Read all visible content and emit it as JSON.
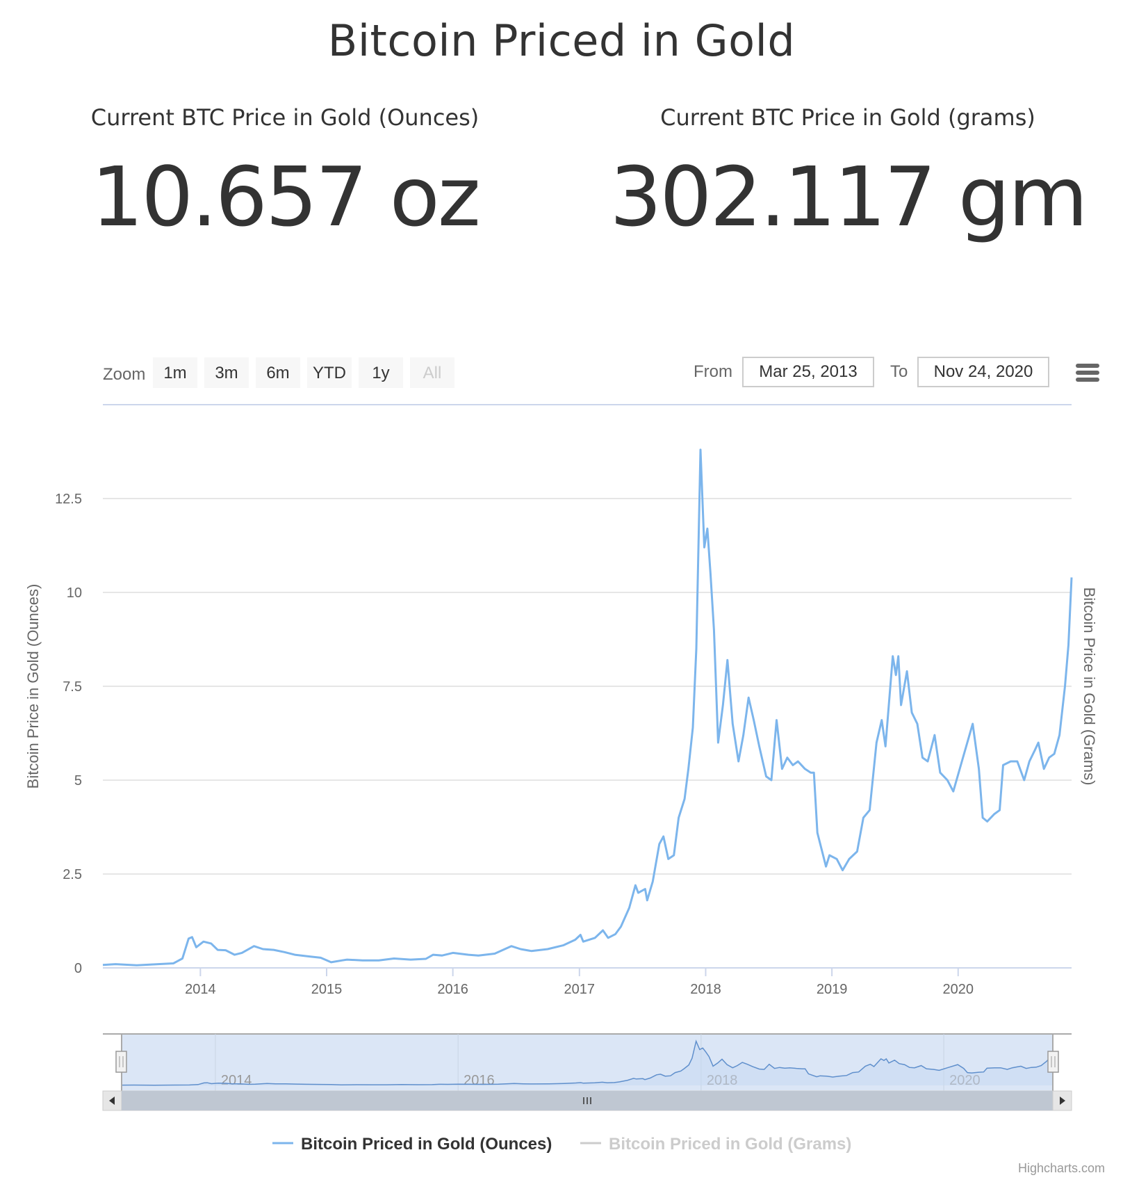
{
  "title": "Bitcoin Priced in Gold",
  "stats": {
    "ounces": {
      "label": "Current BTC Price in Gold (Ounces)",
      "value": "10.657 oz"
    },
    "grams": {
      "label": "Current BTC Price in Gold (grams)",
      "value": "302.117 gm"
    }
  },
  "range_selector": {
    "zoom_label": "Zoom",
    "buttons": [
      {
        "label": "1m",
        "disabled": false
      },
      {
        "label": "3m",
        "disabled": false
      },
      {
        "label": "6m",
        "disabled": false
      },
      {
        "label": "YTD",
        "disabled": false
      },
      {
        "label": "1y",
        "disabled": false
      },
      {
        "label": "All",
        "disabled": true
      }
    ],
    "from_label": "From",
    "from_value": "Mar 25, 2013",
    "to_label": "To",
    "to_value": "Nov 24, 2020"
  },
  "menu_icon": "hamburger-menu-icon",
  "credits": "Highcharts.com",
  "chart_data": {
    "type": "line",
    "title": "Bitcoin Priced in Gold",
    "ylabel": "Bitcoin Price in Gold (Ounces)",
    "ylabel_right": "Bitcoin Price in Gold (Grams)",
    "ylim": [
      0,
      15
    ],
    "yticks": [
      0,
      2.5,
      5,
      7.5,
      10,
      12.5
    ],
    "ytick_labels": [
      "0",
      "2.5",
      "5",
      "7.5",
      "10",
      "12.5"
    ],
    "xlim": [
      "2013-03-25",
      "2020-11-24"
    ],
    "xticks": [
      "2014",
      "2015",
      "2016",
      "2017",
      "2018",
      "2019",
      "2020"
    ],
    "navigator_xticks": [
      "2014",
      "2016",
      "2018",
      "2020"
    ],
    "grid": true,
    "legend_position": "bottom-center",
    "series": [
      {
        "name": "Bitcoin Priced in Gold (Ounces)",
        "color": "#7cb5ec",
        "visible": true,
        "points": [
          [
            "2013-03-25",
            0.08
          ],
          [
            "2013-05-01",
            0.1
          ],
          [
            "2013-07-01",
            0.07
          ],
          [
            "2013-09-01",
            0.1
          ],
          [
            "2013-10-15",
            0.12
          ],
          [
            "2013-11-10",
            0.25
          ],
          [
            "2013-11-28",
            0.78
          ],
          [
            "2013-12-08",
            0.82
          ],
          [
            "2013-12-20",
            0.55
          ],
          [
            "2014-01-10",
            0.7
          ],
          [
            "2014-02-01",
            0.65
          ],
          [
            "2014-02-20",
            0.48
          ],
          [
            "2014-03-15",
            0.47
          ],
          [
            "2014-04-10",
            0.35
          ],
          [
            "2014-05-01",
            0.4
          ],
          [
            "2014-06-05",
            0.58
          ],
          [
            "2014-07-01",
            0.5
          ],
          [
            "2014-08-01",
            0.48
          ],
          [
            "2014-09-01",
            0.42
          ],
          [
            "2014-10-01",
            0.35
          ],
          [
            "2014-11-15",
            0.3
          ],
          [
            "2014-12-15",
            0.27
          ],
          [
            "2015-01-14",
            0.15
          ],
          [
            "2015-02-15",
            0.2
          ],
          [
            "2015-03-01",
            0.22
          ],
          [
            "2015-04-15",
            0.2
          ],
          [
            "2015-06-01",
            0.2
          ],
          [
            "2015-07-15",
            0.25
          ],
          [
            "2015-09-01",
            0.22
          ],
          [
            "2015-10-15",
            0.24
          ],
          [
            "2015-11-05",
            0.35
          ],
          [
            "2015-12-01",
            0.33
          ],
          [
            "2016-01-01",
            0.4
          ],
          [
            "2016-02-15",
            0.35
          ],
          [
            "2016-03-15",
            0.33
          ],
          [
            "2016-05-01",
            0.38
          ],
          [
            "2016-06-18",
            0.58
          ],
          [
            "2016-07-15",
            0.5
          ],
          [
            "2016-08-15",
            0.45
          ],
          [
            "2016-10-01",
            0.5
          ],
          [
            "2016-11-15",
            0.6
          ],
          [
            "2016-12-20",
            0.75
          ],
          [
            "2017-01-04",
            0.88
          ],
          [
            "2017-01-12",
            0.7
          ],
          [
            "2017-02-15",
            0.8
          ],
          [
            "2017-03-10",
            1.0
          ],
          [
            "2017-03-25",
            0.8
          ],
          [
            "2017-04-15",
            0.9
          ],
          [
            "2017-05-01",
            1.1
          ],
          [
            "2017-05-25",
            1.6
          ],
          [
            "2017-06-12",
            2.2
          ],
          [
            "2017-06-20",
            2.0
          ],
          [
            "2017-07-10",
            2.1
          ],
          [
            "2017-07-16",
            1.8
          ],
          [
            "2017-08-01",
            2.3
          ],
          [
            "2017-08-20",
            3.3
          ],
          [
            "2017-09-01",
            3.5
          ],
          [
            "2017-09-15",
            2.9
          ],
          [
            "2017-10-01",
            3.0
          ],
          [
            "2017-10-15",
            4.0
          ],
          [
            "2017-11-01",
            4.5
          ],
          [
            "2017-11-12",
            5.3
          ],
          [
            "2017-11-25",
            6.4
          ],
          [
            "2017-12-05",
            8.5
          ],
          [
            "2017-12-17",
            13.8
          ],
          [
            "2017-12-28",
            11.2
          ],
          [
            "2018-01-06",
            11.7
          ],
          [
            "2018-01-15",
            10.5
          ],
          [
            "2018-01-25",
            9.0
          ],
          [
            "2018-02-06",
            6.0
          ],
          [
            "2018-02-20",
            7.0
          ],
          [
            "2018-03-05",
            8.2
          ],
          [
            "2018-03-20",
            6.5
          ],
          [
            "2018-04-06",
            5.5
          ],
          [
            "2018-04-20",
            6.2
          ],
          [
            "2018-05-05",
            7.2
          ],
          [
            "2018-05-20",
            6.6
          ],
          [
            "2018-06-05",
            5.9
          ],
          [
            "2018-06-25",
            5.1
          ],
          [
            "2018-07-10",
            5.0
          ],
          [
            "2018-07-25",
            6.6
          ],
          [
            "2018-08-10",
            5.3
          ],
          [
            "2018-08-25",
            5.6
          ],
          [
            "2018-09-10",
            5.4
          ],
          [
            "2018-09-25",
            5.5
          ],
          [
            "2018-10-15",
            5.3
          ],
          [
            "2018-11-01",
            5.2
          ],
          [
            "2018-11-10",
            5.2
          ],
          [
            "2018-11-20",
            3.6
          ],
          [
            "2018-12-15",
            2.7
          ],
          [
            "2018-12-25",
            3.0
          ],
          [
            "2019-01-15",
            2.9
          ],
          [
            "2019-02-01",
            2.6
          ],
          [
            "2019-02-20",
            2.9
          ],
          [
            "2019-03-15",
            3.1
          ],
          [
            "2019-04-02",
            4.0
          ],
          [
            "2019-04-20",
            4.2
          ],
          [
            "2019-05-10",
            6.0
          ],
          [
            "2019-05-25",
            6.6
          ],
          [
            "2019-06-05",
            5.9
          ],
          [
            "2019-06-26",
            8.3
          ],
          [
            "2019-07-05",
            7.8
          ],
          [
            "2019-07-12",
            8.3
          ],
          [
            "2019-07-20",
            7.0
          ],
          [
            "2019-08-06",
            7.9
          ],
          [
            "2019-08-20",
            6.8
          ],
          [
            "2019-09-05",
            6.5
          ],
          [
            "2019-09-20",
            5.6
          ],
          [
            "2019-10-05",
            5.5
          ],
          [
            "2019-10-25",
            6.2
          ],
          [
            "2019-11-10",
            5.2
          ],
          [
            "2019-12-01",
            5.0
          ],
          [
            "2019-12-18",
            4.7
          ],
          [
            "2020-01-15",
            5.6
          ],
          [
            "2020-02-12",
            6.5
          ],
          [
            "2020-03-01",
            5.3
          ],
          [
            "2020-03-12",
            4.0
          ],
          [
            "2020-03-25",
            3.9
          ],
          [
            "2020-04-15",
            4.1
          ],
          [
            "2020-04-30",
            4.2
          ],
          [
            "2020-05-10",
            5.4
          ],
          [
            "2020-06-01",
            5.5
          ],
          [
            "2020-06-20",
            5.5
          ],
          [
            "2020-07-10",
            5.0
          ],
          [
            "2020-07-25",
            5.5
          ],
          [
            "2020-08-10",
            5.8
          ],
          [
            "2020-08-20",
            6.0
          ],
          [
            "2020-09-05",
            5.3
          ],
          [
            "2020-09-20",
            5.6
          ],
          [
            "2020-10-05",
            5.7
          ],
          [
            "2020-10-20",
            6.2
          ],
          [
            "2020-11-05",
            7.5
          ],
          [
            "2020-11-15",
            8.6
          ],
          [
            "2020-11-24",
            10.4
          ]
        ]
      },
      {
        "name": "Bitcoin Priced in Gold (Grams)",
        "color": "#cccccc",
        "visible": false,
        "points": []
      }
    ]
  }
}
